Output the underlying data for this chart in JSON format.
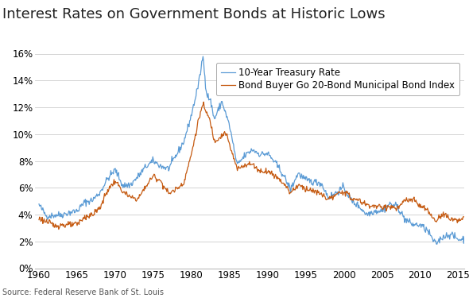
{
  "title": "Interest Rates on Government Bonds at Historic Lows",
  "source": "Source: Federal Reserve Bank of St. Louis",
  "line1_label": "10-Year Treasury Rate",
  "line2_label": "Bond Buyer Go 20-Bond Municipal Bond Index",
  "line1_color": "#5B9BD5",
  "line2_color": "#C55A11",
  "background_color": "#FFFFFF",
  "ylim": [
    0,
    16
  ],
  "yticks": [
    0,
    2,
    4,
    6,
    8,
    10,
    12,
    14,
    16
  ],
  "xlim": [
    1959.5,
    2015.8
  ],
  "xticks": [
    1960,
    1965,
    1970,
    1975,
    1980,
    1985,
    1990,
    1995,
    2000,
    2005,
    2010,
    2015
  ],
  "title_fontsize": 13,
  "label_fontsize": 8.5,
  "tick_fontsize": 8.5,
  "source_fontsize": 7
}
